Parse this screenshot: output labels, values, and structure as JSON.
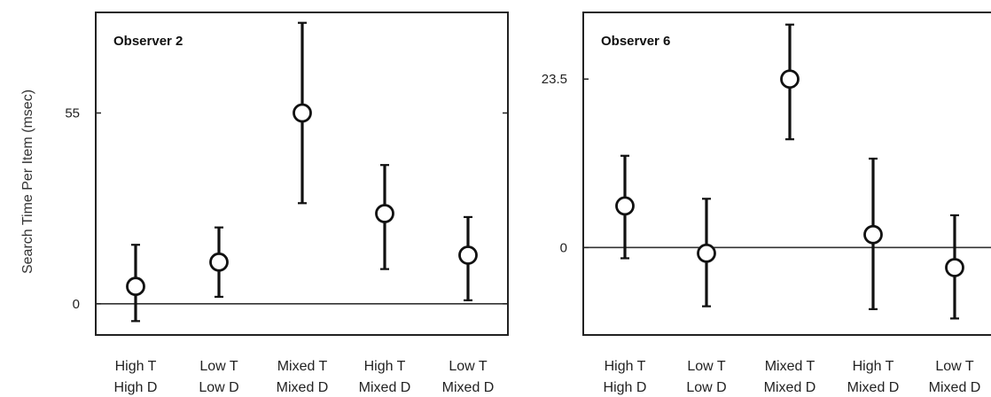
{
  "ylabel": "Search Time Per Item (msec)",
  "chart_data": [
    {
      "type": "scatter",
      "title": "Observer 2",
      "ylabel": "Search Time Per Item (msec)",
      "categories": [
        [
          "High T",
          "High D"
        ],
        [
          "Low T",
          "Low D"
        ],
        [
          "Mixed T",
          "Mixed D"
        ],
        [
          "High T",
          "Mixed D"
        ],
        [
          "Low T",
          "Mixed D"
        ]
      ],
      "yticks": [
        0,
        55
      ],
      "ylim": [
        -9,
        84
      ],
      "reference_line": 0,
      "series": [
        {
          "values": [
            5,
            12,
            55,
            26,
            14
          ],
          "lower": [
            -5,
            2,
            29,
            10,
            1
          ],
          "upper": [
            17,
            22,
            81,
            40,
            25
          ]
        }
      ]
    },
    {
      "type": "scatter",
      "title": "Observer 6",
      "categories": [
        [
          "High T",
          "High D"
        ],
        [
          "Low T",
          "Low D"
        ],
        [
          "Mixed T",
          "Mixed D"
        ],
        [
          "High T",
          "Mixed D"
        ],
        [
          "Low T",
          "Mixed D"
        ]
      ],
      "yticks": [
        0,
        23.5
      ],
      "ylim": [
        -12.2,
        32.8
      ],
      "reference_line": 0,
      "series": [
        {
          "values": [
            5.8,
            -0.8,
            23.5,
            1.8,
            -2.8
          ],
          "lower": [
            -1.5,
            -8.2,
            15.1,
            -8.6,
            -9.9
          ],
          "upper": [
            12.8,
            6.8,
            31.1,
            12.4,
            4.5
          ]
        }
      ]
    }
  ]
}
